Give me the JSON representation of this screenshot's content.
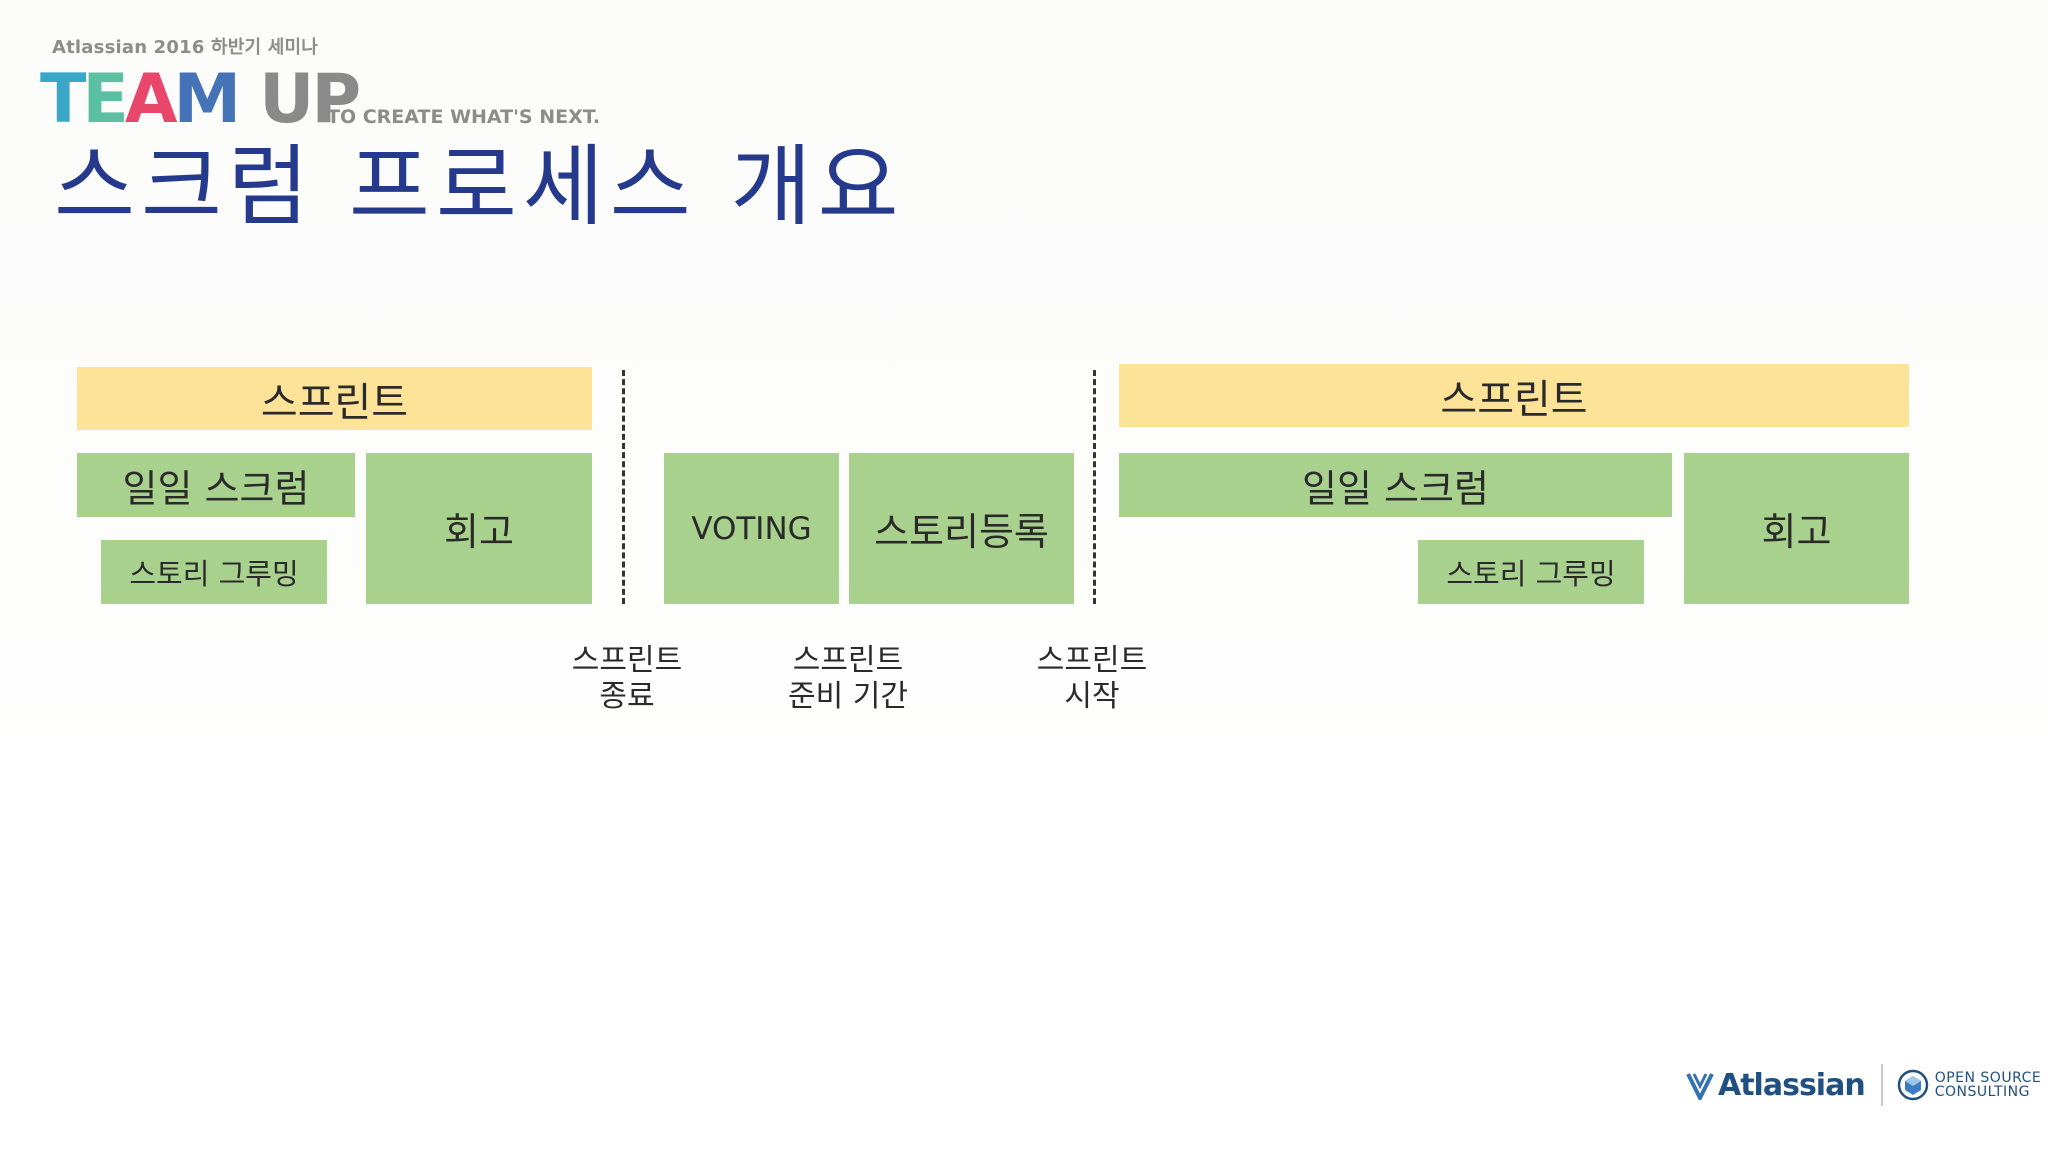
{
  "header": {
    "seminar": "Atlassian 2016 하반기 세미나",
    "logo": {
      "team": [
        "T",
        "E",
        "A",
        "M"
      ],
      "up": "UP"
    },
    "tagline": "TO CREATE WHAT'S NEXT.",
    "title": "스크럼 프로세스 개요"
  },
  "diagram": {
    "left_sprint": {
      "header": "스프린트",
      "daily_scrum": "일일 스크럼",
      "story_grooming": "스토리 그루밍",
      "retro": "회고"
    },
    "prep": {
      "voting": "VOTING",
      "story_registration": "스토리등록"
    },
    "right_sprint": {
      "header": "스프린트",
      "daily_scrum": "일일 스크럼",
      "story_grooming": "스토리 그루밍",
      "retro": "회고"
    },
    "captions": [
      {
        "line1": "스프린트",
        "line2": "종료"
      },
      {
        "line1": "스프린트",
        "line2": "준비 기간"
      },
      {
        "line1": "스프린트",
        "line2": "시작"
      }
    ],
    "colors": {
      "sprint": "#fde398",
      "activity": "#a9d18e",
      "title": "#253a8c"
    }
  },
  "footer": {
    "atlassian": "Atlassian",
    "osc_line1": "OPEN SOURCE",
    "osc_line2": "CONSULTING"
  }
}
